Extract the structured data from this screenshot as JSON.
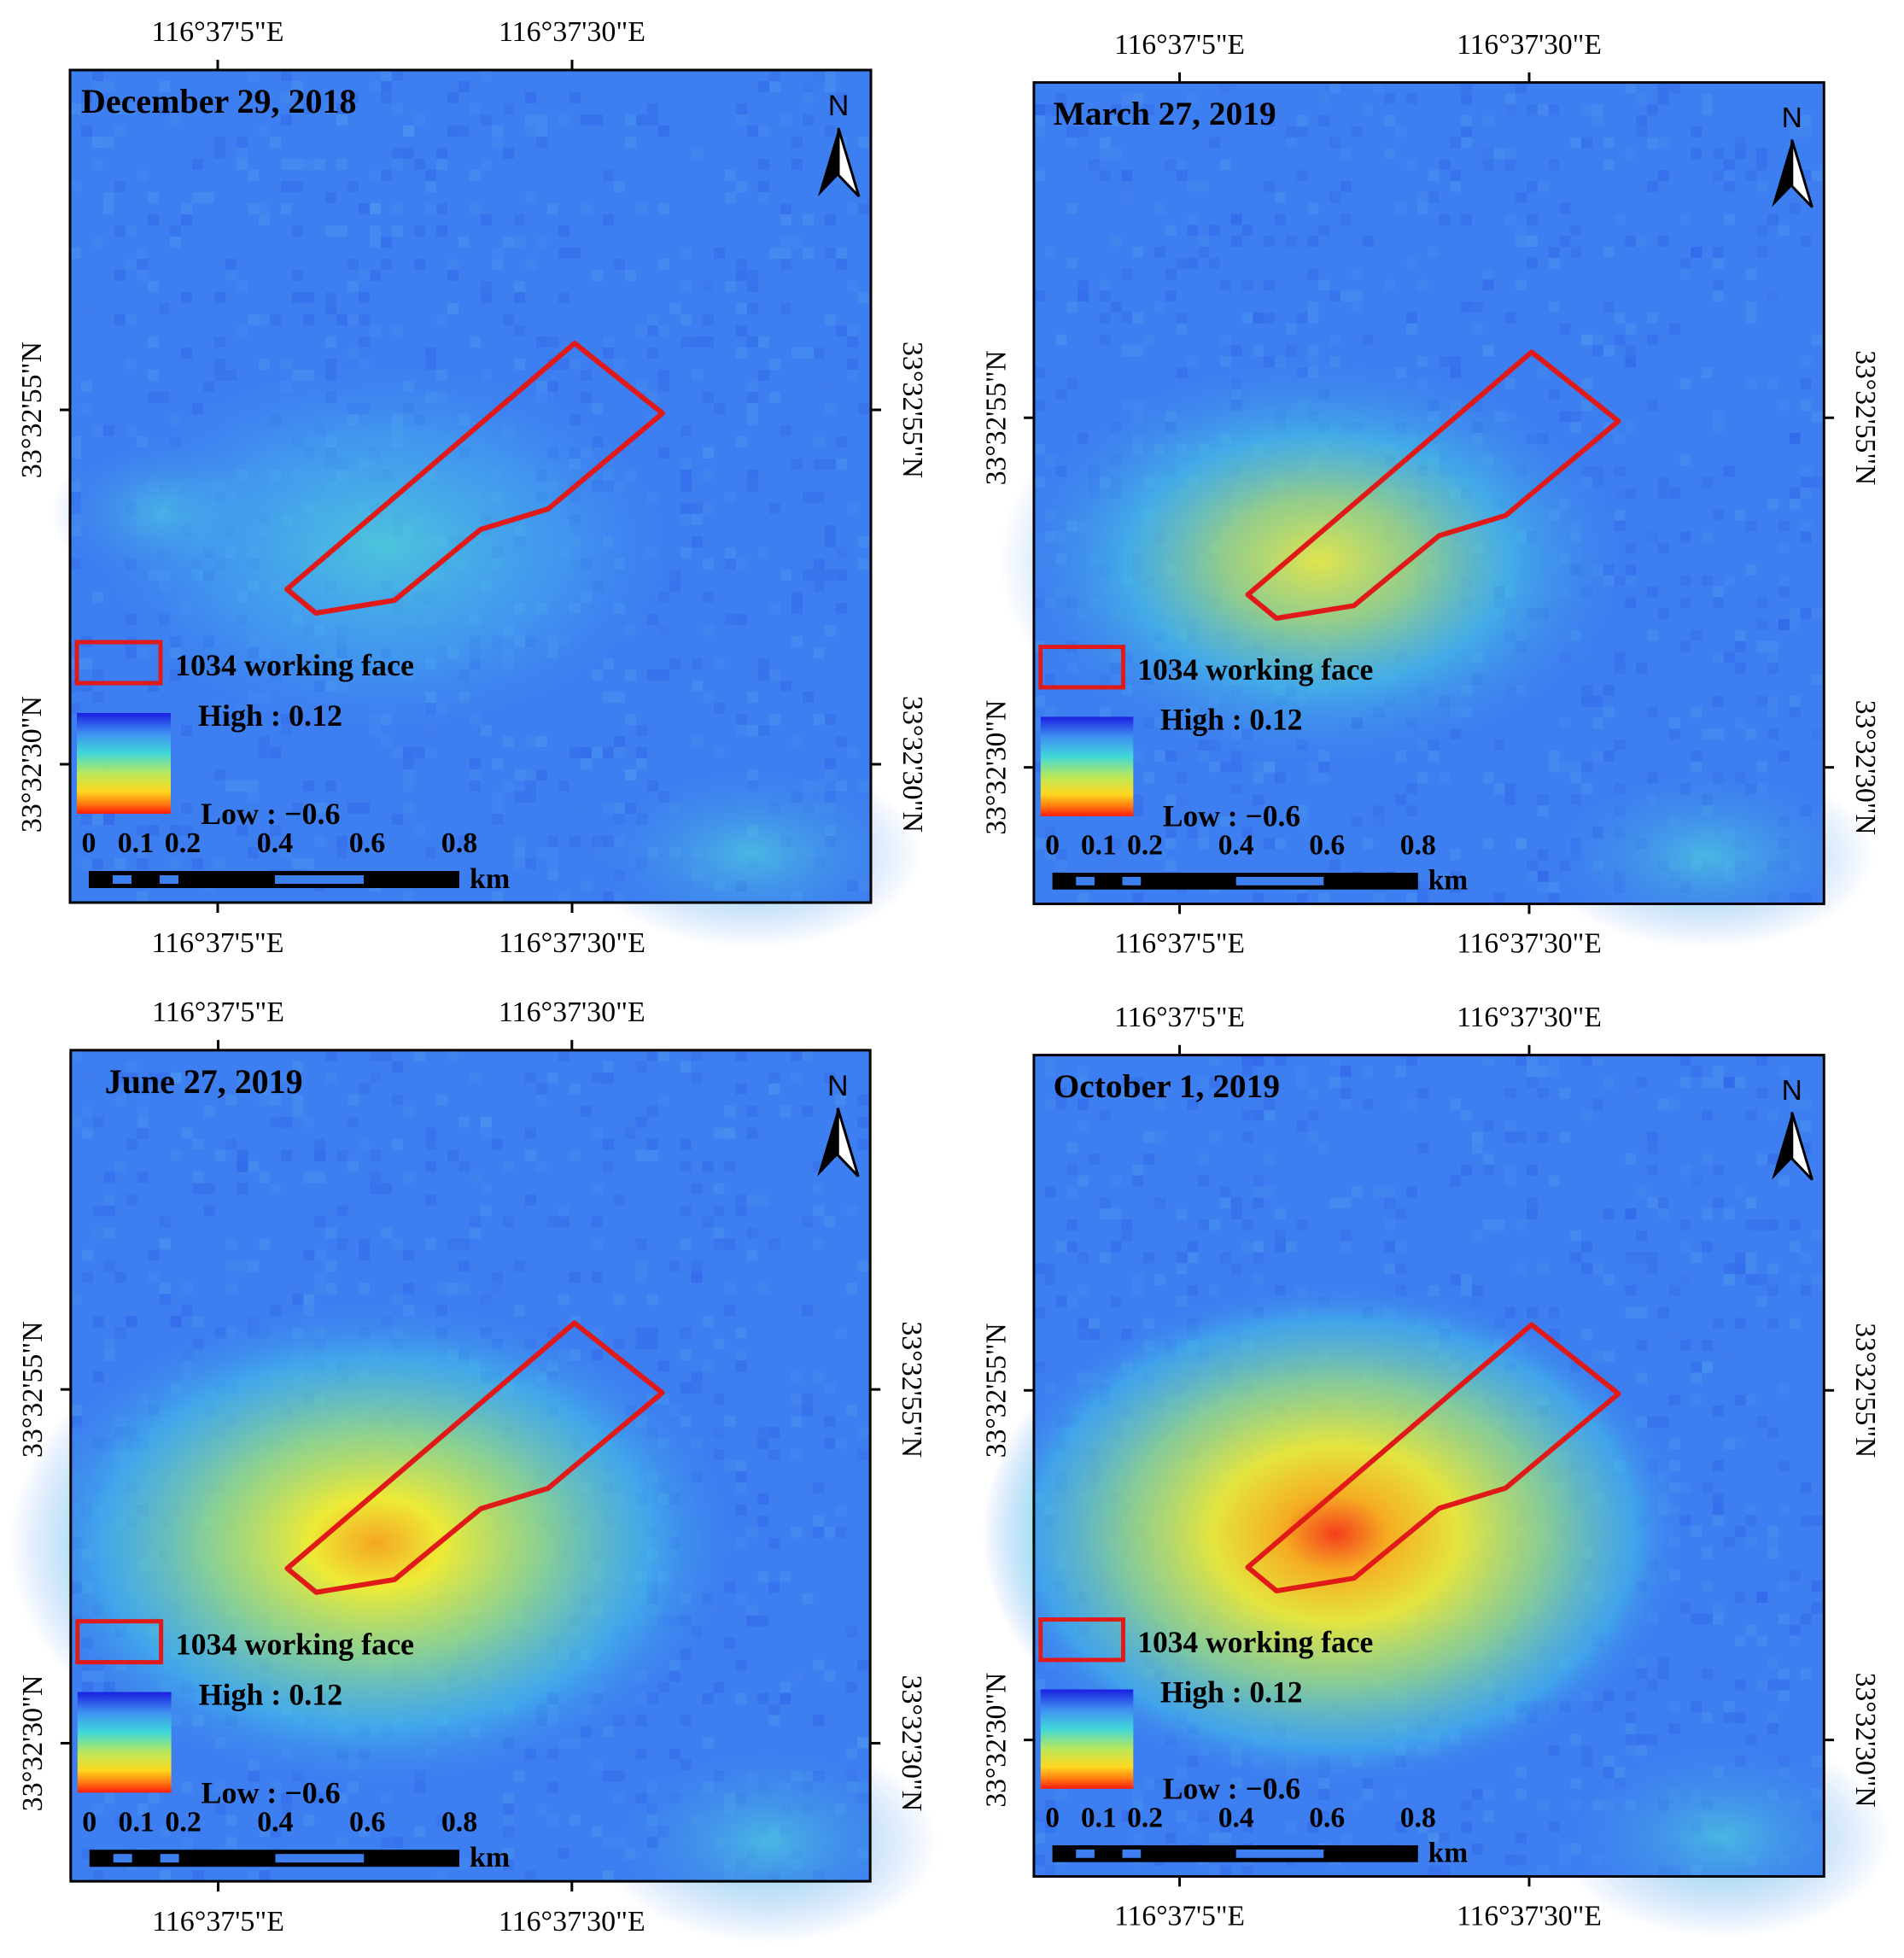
{
  "colors": {
    "background": "#3d7ef0",
    "working_face": "#e01919",
    "frame": "#000000",
    "gradient": [
      "#2030e8",
      "#2f6ff0",
      "#3fb8ef",
      "#40e0c8",
      "#b8e85a",
      "#f6f22a",
      "#ff9a18",
      "#ff1a0a"
    ]
  },
  "panels": [
    {
      "id": "p1",
      "date": "December 29, 2018",
      "deformation_level": 0.05,
      "north_label": "N",
      "lon_labels": [
        "116°37'5\"E",
        "116°37'30\"E"
      ],
      "lat_labels": [
        "33°32'55\"N",
        "33°32'30\"N"
      ],
      "legend": {
        "feature": "1034 working face",
        "high": "High : 0.12",
        "low": "Low : −0.6"
      },
      "scalebar": {
        "ticks": [
          "0",
          "0.1",
          "0.2",
          "0.4",
          "0.6",
          "0.8"
        ],
        "unit": "km"
      }
    },
    {
      "id": "p2",
      "date": "March 27, 2019",
      "deformation_level": 0.35,
      "north_label": "N",
      "lon_labels": [
        "116°37'5\"E",
        "116°37'30\"E"
      ],
      "lat_labels": [
        "33°32'55\"N",
        "33°32'30\"N"
      ],
      "legend": {
        "feature": "1034 working face",
        "high": "High : 0.12",
        "low": "Low : −0.6"
      },
      "scalebar": {
        "ticks": [
          "0",
          "0.1",
          "0.2",
          "0.4",
          "0.6",
          "0.8"
        ],
        "unit": "km"
      }
    },
    {
      "id": "p3",
      "date": "June 27, 2019",
      "deformation_level": 0.65,
      "north_label": "N",
      "lon_labels": [
        "116°37'5\"E",
        "116°37'30\"E"
      ],
      "lat_labels": [
        "33°32'55\"N",
        "33°32'30\"N"
      ],
      "legend": {
        "feature": "1034 working face",
        "high": "High : 0.12",
        "low": "Low : −0.6"
      },
      "scalebar": {
        "ticks": [
          "0",
          "0.1",
          "0.2",
          "0.4",
          "0.6",
          "0.8"
        ],
        "unit": "km"
      }
    },
    {
      "id": "p4",
      "date": "October 1, 2019",
      "deformation_level": 0.9,
      "north_label": "N",
      "lon_labels": [
        "116°37'5\"E",
        "116°37'30\"E"
      ],
      "lat_labels": [
        "33°32'55\"N",
        "33°32'30\"N"
      ],
      "legend": {
        "feature": "1034 working face",
        "high": "High : 0.12",
        "low": "Low : −0.6"
      },
      "scalebar": {
        "ticks": [
          "0",
          "0.1",
          "0.2",
          "0.4",
          "0.6",
          "0.8"
        ],
        "unit": "km"
      }
    }
  ]
}
